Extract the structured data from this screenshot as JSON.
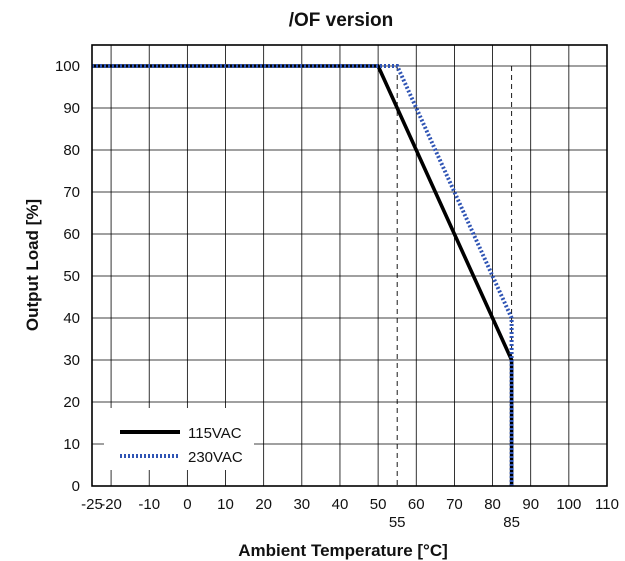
{
  "chart_data": {
    "type": "line",
    "title": "/OF version",
    "xlabel": "Ambient Temperature [°C]",
    "ylabel": "Output Load [%]",
    "xlim": [
      -25,
      110
    ],
    "ylim": [
      0,
      105
    ],
    "xticks": [
      -25,
      -20,
      -10,
      0,
      10,
      20,
      30,
      40,
      50,
      60,
      70,
      80,
      90,
      100,
      110
    ],
    "yticks": [
      0,
      10,
      20,
      30,
      40,
      50,
      60,
      70,
      80,
      90,
      100
    ],
    "extra_xticks": [
      55,
      85
    ],
    "grid": true,
    "legend_position": "bottom-left",
    "series": [
      {
        "name": "115VAC",
        "style": "solid",
        "color": "#000000",
        "points": [
          [
            -25,
            100
          ],
          [
            50,
            100
          ],
          [
            85,
            30
          ],
          [
            85,
            0
          ]
        ]
      },
      {
        "name": "230VAC",
        "style": "dotted",
        "color": "#2f54b4",
        "points": [
          [
            -25,
            100
          ],
          [
            55,
            100
          ],
          [
            85,
            40
          ],
          [
            85,
            0
          ]
        ]
      }
    ]
  }
}
